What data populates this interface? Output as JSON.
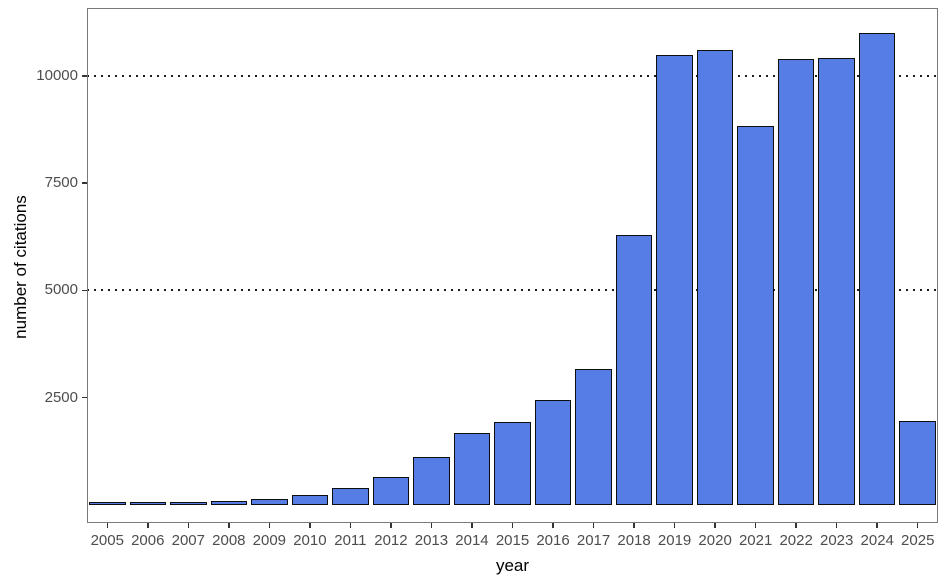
{
  "chart_data": {
    "type": "bar",
    "title": "",
    "xlabel": "year",
    "ylabel": "number of citations",
    "categories": [
      "2005",
      "2006",
      "2007",
      "2008",
      "2009",
      "2010",
      "2011",
      "2012",
      "2013",
      "2014",
      "2015",
      "2016",
      "2017",
      "2018",
      "2019",
      "2020",
      "2021",
      "2022",
      "2023",
      "2024",
      "2025"
    ],
    "values": [
      40,
      55,
      70,
      95,
      135,
      230,
      400,
      660,
      1120,
      1680,
      1930,
      2440,
      3170,
      6290,
      10480,
      10600,
      8820,
      10390,
      10420,
      11000,
      1960
    ],
    "y_ticks": [
      2500,
      5000,
      7500,
      10000
    ],
    "y_tick_labels": [
      "2500",
      "5000",
      "7500",
      "10000"
    ],
    "gridlines_y": [
      5000,
      10000
    ],
    "ylim": [
      -420,
      11580
    ],
    "legend_position": "none",
    "grid_style": "horizontal dotted lines at 5000 and 10000 only",
    "colors": {
      "bar_fill": "#567de3",
      "bar_stroke": "#0e0e0e",
      "gridline": "#1c1c1c",
      "tick_label": "#4d4d4d",
      "axis_title": "#000000",
      "panel_border": "#7a7a7a",
      "background": "#ffffff"
    }
  }
}
